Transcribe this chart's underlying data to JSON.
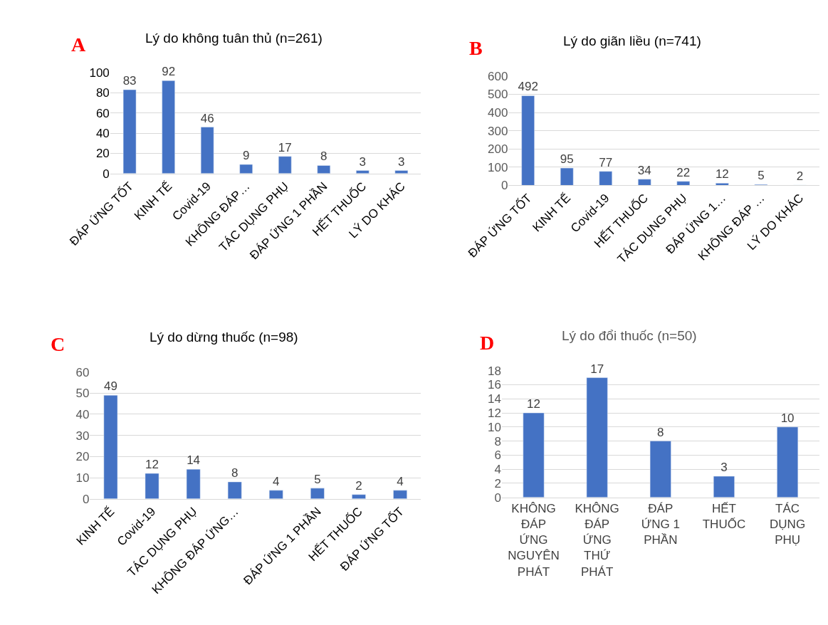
{
  "chart_data": [
    {
      "type": "bar",
      "title": "Lý do không tuân thủ (n=261)",
      "annotations": [
        "A"
      ],
      "categories": [
        "ĐÁP ỨNG TỐT",
        "KINH TẾ",
        "Covid-19",
        "KHÔNG ĐÁP…",
        "TÁC DỤNG PHỤ",
        "ĐÁP ỨNG 1 PHẦN",
        "HẾT THUỐC",
        "LÝ DO KHÁC"
      ],
      "values": [
        83,
        92,
        46,
        9,
        17,
        8,
        3,
        3
      ],
      "color": "#4472c4",
      "ylim": [
        0,
        100
      ],
      "yticks": [
        0,
        20,
        40,
        60,
        80,
        100
      ],
      "grid": "y",
      "data_labels": true
    },
    {
      "type": "bar",
      "title": "Lý do giãn liều (n=741)",
      "annotations": [
        "B"
      ],
      "categories": [
        "ĐÁP ỨNG TỐT",
        "KINH TẾ",
        "Covid-19",
        "HẾT THUỐC",
        "TÁC DỤNG PHỤ",
        "ĐÁP ỨNG 1…",
        "KHÔNG ĐÁP …",
        "LÝ DO KHÁC"
      ],
      "values": [
        492,
        95,
        77,
        34,
        22,
        12,
        5,
        2
      ],
      "color": "#4472c4",
      "ylim": [
        0,
        600
      ],
      "yticks": [
        0,
        100,
        200,
        300,
        400,
        500,
        600
      ],
      "grid": "y",
      "data_labels": true
    },
    {
      "type": "bar",
      "title": "Lý do dừng thuốc (n=98)",
      "annotations": [
        "C"
      ],
      "categories": [
        "KINH TẾ",
        "Covid-19",
        "TÁC DỤNG PHỤ",
        "KHÔNG ĐÁP ỨNG…",
        null,
        "ĐÁP ỨNG 1 PHẦN",
        "HẾT THUỐC",
        "ĐÁP ỨNG TỐT"
      ],
      "values": [
        49,
        12,
        14,
        8,
        4,
        5,
        2,
        4
      ],
      "color": "#4472c4",
      "ylim": [
        0,
        60
      ],
      "yticks": [
        0,
        10,
        20,
        30,
        40,
        50,
        60
      ],
      "grid": "y",
      "data_labels": true
    },
    {
      "type": "bar",
      "title": "Lý do đổi thuốc (n=50)",
      "annotations": [
        "D"
      ],
      "categories": [
        "KHÔNG ĐÁP ỨNG NGUYÊN PHÁT",
        "KHÔNG ĐÁP ỨNG THỨ PHÁT",
        "ĐÁP ỨNG 1 PHẦN",
        "HẾT THUỐC",
        "TÁC DỤNG PHỤ"
      ],
      "values": [
        12,
        17,
        8,
        3,
        10
      ],
      "color": "#4472c4",
      "ylim": [
        0,
        18
      ],
      "yticks": [
        0,
        2,
        4,
        6,
        8,
        10,
        12,
        14,
        16,
        18
      ],
      "grid": "y",
      "data_labels": true
    }
  ]
}
